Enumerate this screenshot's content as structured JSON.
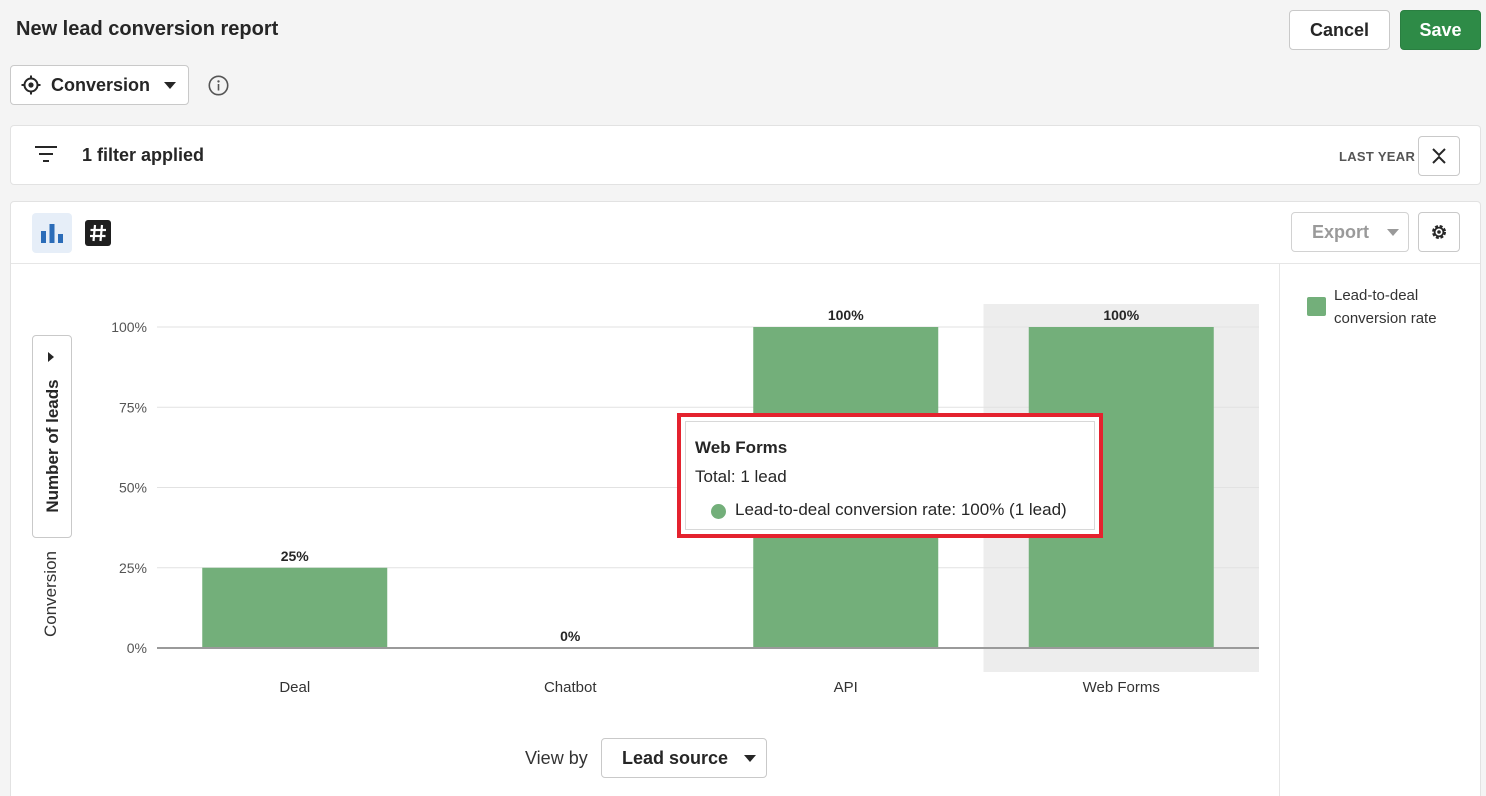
{
  "header": {
    "title": "New lead conversion report",
    "cancel_label": "Cancel",
    "save_label": "Save"
  },
  "goal_select": {
    "value": "Conversion"
  },
  "filter_bar": {
    "summary": "1 filter applied",
    "period": "LAST YEAR"
  },
  "toolbar": {
    "export_label": "Export"
  },
  "axis": {
    "toggle_label": "Number of leads",
    "caption": "Conversion"
  },
  "legend": {
    "entry": "Lead-to-deal conversion rate"
  },
  "tooltip": {
    "title": "Web Forms",
    "total": "Total: 1 lead",
    "line": "Lead-to-deal conversion rate: 100% (1 lead)"
  },
  "view_by": {
    "label": "View by",
    "value": "Lead source"
  },
  "colors": {
    "bar": "#73af7a",
    "save": "#2e8b47",
    "highlight": "#e4222e"
  },
  "chart_data": {
    "type": "bar",
    "categories": [
      "Deal",
      "Chatbot",
      "API",
      "Web Forms"
    ],
    "values": [
      25,
      0,
      100,
      100
    ],
    "value_labels": [
      "25%",
      "0%",
      "100%",
      "100%"
    ],
    "yticks": [
      "0%",
      "25%",
      "50%",
      "75%",
      "100%"
    ],
    "ylim": [
      0,
      100
    ],
    "highlighted_category": "Web Forms",
    "grid": true,
    "legend": "right"
  }
}
